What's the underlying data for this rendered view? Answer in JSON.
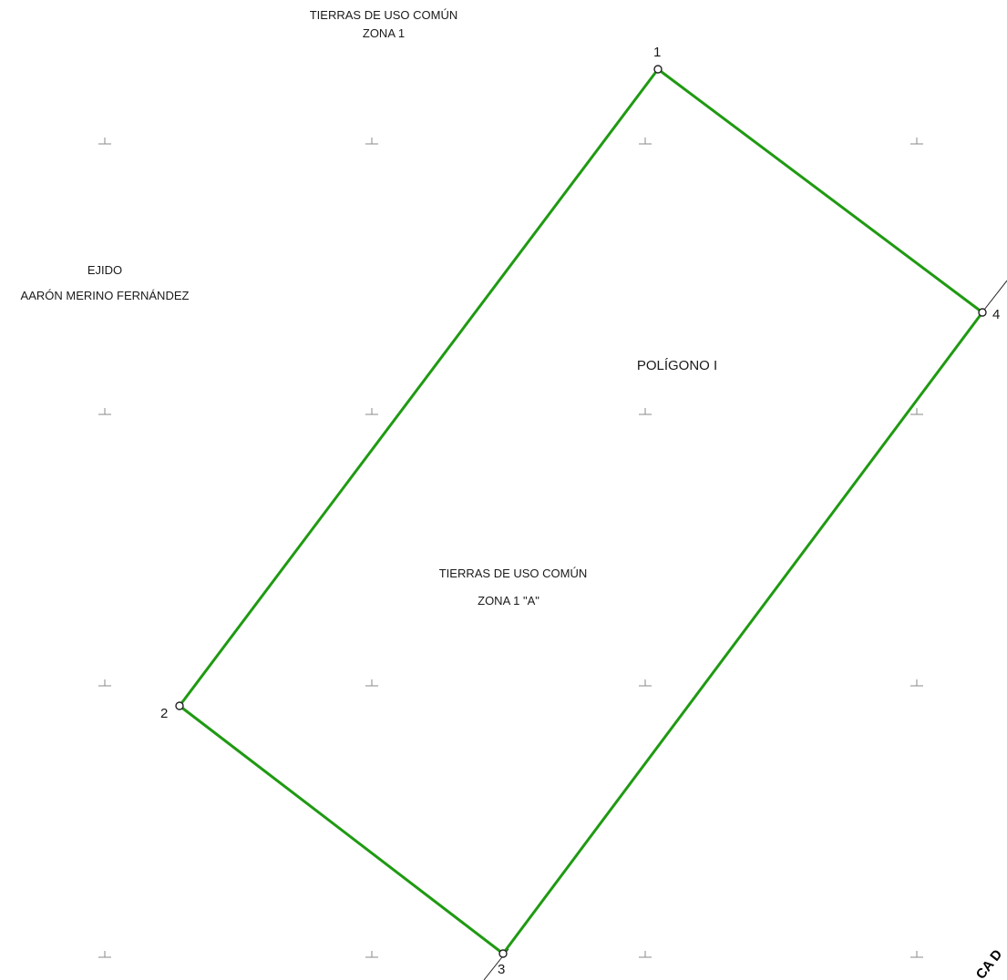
{
  "labels": {
    "top_title_line1": "TIERRAS DE USO COMÚN",
    "top_title_line2": "ZONA 1",
    "left_line1": "EJIDO",
    "left_line2": "AARÓN MERINO FERNÁNDEZ",
    "polygon_name": "POLÍGONO I",
    "center_line1": "TIERRAS DE USO COMÚN",
    "center_line2": "ZONA 1 \"A\"",
    "edge_text": "CA D"
  },
  "vertices": {
    "v1": "1",
    "v2": "2",
    "v3": "3",
    "v4": "4"
  },
  "colors": {
    "polygon_boundary": "#1f9a12",
    "grid_tick": "#8a8a8a",
    "vertex_marker": "#222222"
  }
}
